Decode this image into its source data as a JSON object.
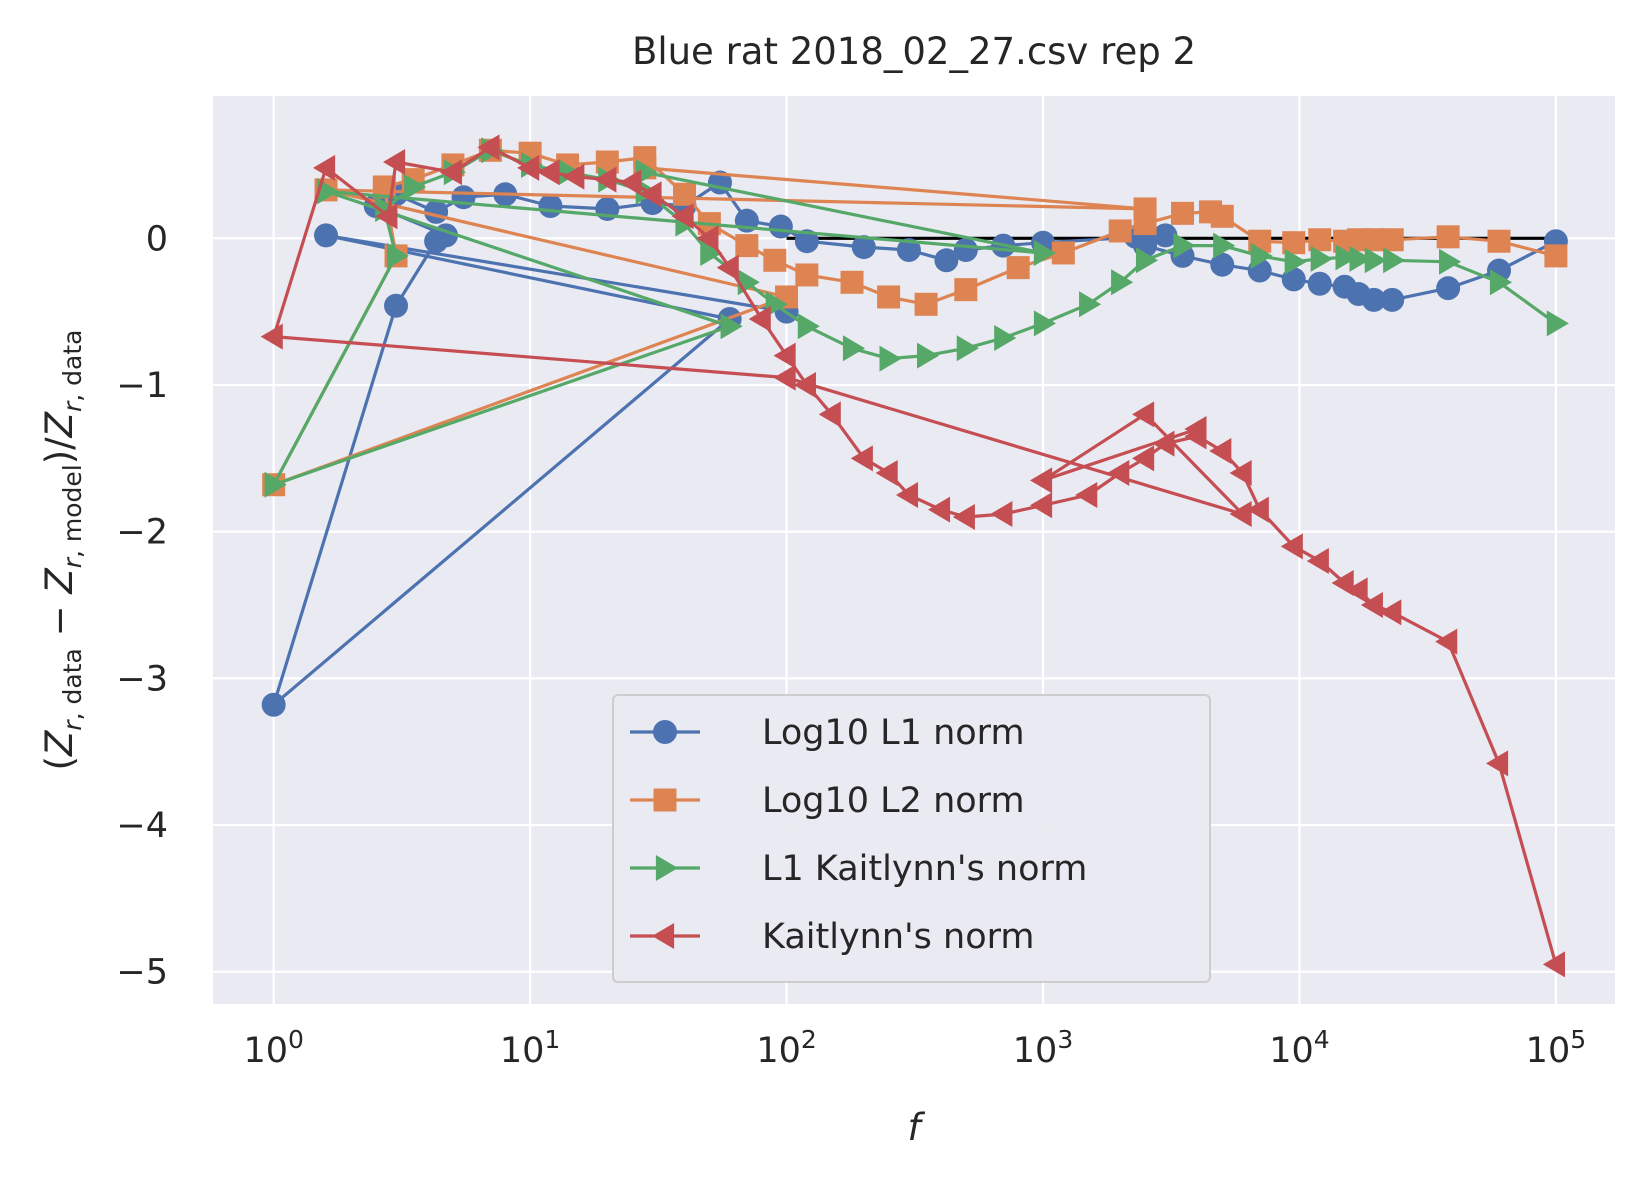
{
  "chart_data": {
    "type": "line",
    "title": "Blue rat 2018_02_27.csv rep 2",
    "xlabel": "f",
    "ylabel": "(Z_{r,data} − Z_{r,model})/Z_{r,data}",
    "xscale": "log",
    "xlim": [
      0.58,
      170000
    ],
    "ylim": [
      -5.22,
      0.97
    ],
    "xticks": [
      1,
      10,
      100,
      1000,
      10000,
      100000
    ],
    "xtick_labels": [
      "10^0",
      "10^1",
      "10^2",
      "10^3",
      "10^4",
      "10^5"
    ],
    "yticks": [
      0,
      -1,
      -2,
      -3,
      -4,
      -5
    ],
    "ytick_labels": [
      "0",
      "−1",
      "−2",
      "−3",
      "−4",
      "−5"
    ],
    "grid": true,
    "legend_position": "lower-center",
    "background": "#EAEAF2",
    "reference_line": {
      "x": [
        100,
        100000
      ],
      "y": [
        0,
        0
      ],
      "color": "#000000"
    },
    "series": [
      {
        "name": "Log10 L1 norm",
        "color": "#4C72B0",
        "marker": "circle",
        "points": [
          [
            100000,
            -0.02
          ],
          [
            60000,
            -0.22
          ],
          [
            38000,
            -0.34
          ],
          [
            23000,
            -0.42
          ],
          [
            19500,
            -0.42
          ],
          [
            17000,
            -0.38
          ],
          [
            15000,
            -0.33
          ],
          [
            12000,
            -0.31
          ],
          [
            9500,
            -0.28
          ],
          [
            7000,
            -0.22
          ],
          [
            5000,
            -0.18
          ],
          [
            3500,
            -0.12
          ],
          [
            2500,
            -0.05
          ],
          [
            2300,
            0.01
          ],
          [
            3000,
            0.02
          ],
          [
            1000,
            -0.03
          ],
          [
            700,
            -0.05
          ],
          [
            500,
            -0.08
          ],
          [
            420,
            -0.15
          ],
          [
            300,
            -0.08
          ],
          [
            200,
            -0.06
          ],
          [
            120,
            -0.02
          ],
          [
            95,
            0.08
          ],
          [
            70,
            0.12
          ],
          [
            55,
            0.38
          ],
          [
            40,
            0.22
          ],
          [
            30,
            0.24
          ],
          [
            20,
            0.2
          ],
          [
            12,
            0.22
          ],
          [
            8,
            0.3
          ],
          [
            5.5,
            0.28
          ],
          [
            4.3,
            0.18
          ],
          [
            3,
            0.3
          ],
          [
            2.5,
            0.22
          ],
          [
            4.7,
            0.02
          ],
          [
            4.3,
            -0.02
          ],
          [
            3,
            -0.46
          ],
          [
            1,
            -3.18
          ],
          [
            60,
            -0.55
          ],
          [
            1.6,
            0.02
          ],
          [
            100,
            -0.5
          ]
        ]
      },
      {
        "name": "Log10 L2 norm",
        "color": "#DD8452",
        "marker": "square",
        "points": [
          [
            100000,
            -0.12
          ],
          [
            60000,
            -0.02
          ],
          [
            38000,
            0.01
          ],
          [
            23000,
            -0.01
          ],
          [
            19500,
            -0.01
          ],
          [
            17000,
            -0.01
          ],
          [
            15000,
            -0.02
          ],
          [
            12000,
            -0.01
          ],
          [
            9500,
            -0.03
          ],
          [
            7000,
            -0.02
          ],
          [
            5000,
            0.15
          ],
          [
            4500,
            0.18
          ],
          [
            3500,
            0.17
          ],
          [
            2500,
            0.1
          ],
          [
            2000,
            0.05
          ],
          [
            1200,
            -0.1
          ],
          [
            800,
            -0.2
          ],
          [
            500,
            -0.35
          ],
          [
            350,
            -0.45
          ],
          [
            250,
            -0.4
          ],
          [
            180,
            -0.3
          ],
          [
            120,
            -0.25
          ],
          [
            90,
            -0.15
          ],
          [
            70,
            -0.05
          ],
          [
            50,
            0.1
          ],
          [
            40,
            0.3
          ],
          [
            28,
            0.55
          ],
          [
            20,
            0.52
          ],
          [
            14,
            0.5
          ],
          [
            10,
            0.58
          ],
          [
            7,
            0.6
          ],
          [
            5,
            0.5
          ],
          [
            3.5,
            0.4
          ],
          [
            2.7,
            0.35
          ],
          [
            3,
            -0.12
          ],
          [
            1,
            -1.68
          ],
          [
            100,
            -0.4
          ],
          [
            1.6,
            0.33
          ],
          [
            2500,
            0.2
          ],
          [
            28,
            0.48
          ]
        ]
      },
      {
        "name": "L1 Kaitlynn's norm",
        "color": "#55A868",
        "marker": "triangle-right",
        "points": [
          [
            100000,
            -0.58
          ],
          [
            60000,
            -0.3
          ],
          [
            38000,
            -0.16
          ],
          [
            23000,
            -0.15
          ],
          [
            19500,
            -0.15
          ],
          [
            17000,
            -0.14
          ],
          [
            15000,
            -0.13
          ],
          [
            12000,
            -0.14
          ],
          [
            9500,
            -0.16
          ],
          [
            7000,
            -0.12
          ],
          [
            5000,
            -0.05
          ],
          [
            3500,
            -0.05
          ],
          [
            2500,
            -0.15
          ],
          [
            2000,
            -0.3
          ],
          [
            1500,
            -0.45
          ],
          [
            1000,
            -0.58
          ],
          [
            700,
            -0.68
          ],
          [
            500,
            -0.75
          ],
          [
            350,
            -0.8
          ],
          [
            250,
            -0.82
          ],
          [
            180,
            -0.75
          ],
          [
            120,
            -0.6
          ],
          [
            90,
            -0.45
          ],
          [
            70,
            -0.3
          ],
          [
            50,
            -0.1
          ],
          [
            40,
            0.1
          ],
          [
            28,
            0.32
          ],
          [
            20,
            0.4
          ],
          [
            14,
            0.45
          ],
          [
            10,
            0.5
          ],
          [
            7,
            0.6
          ],
          [
            5,
            0.45
          ],
          [
            3.5,
            0.35
          ],
          [
            2.7,
            0.2
          ],
          [
            3,
            -0.12
          ],
          [
            1,
            -1.68
          ],
          [
            60,
            -0.6
          ],
          [
            1.6,
            0.32
          ],
          [
            1000,
            -0.1
          ],
          [
            28,
            0.45
          ]
        ]
      },
      {
        "name": "Kaitlynn's norm",
        "color": "#C44E52",
        "marker": "triangle-left",
        "points": [
          [
            100000,
            -4.95
          ],
          [
            60000,
            -3.58
          ],
          [
            38000,
            -2.75
          ],
          [
            23000,
            -2.55
          ],
          [
            19500,
            -2.5
          ],
          [
            17000,
            -2.4
          ],
          [
            15000,
            -2.35
          ],
          [
            12000,
            -2.2
          ],
          [
            9500,
            -2.1
          ],
          [
            7000,
            -1.85
          ],
          [
            6000,
            -1.6
          ],
          [
            5000,
            -1.45
          ],
          [
            4000,
            -1.35
          ],
          [
            3000,
            -1.4
          ],
          [
            2500,
            -1.5
          ],
          [
            2000,
            -1.6
          ],
          [
            1500,
            -1.75
          ],
          [
            1000,
            -1.82
          ],
          [
            700,
            -1.88
          ],
          [
            500,
            -1.9
          ],
          [
            400,
            -1.85
          ],
          [
            300,
            -1.75
          ],
          [
            250,
            -1.6
          ],
          [
            200,
            -1.5
          ],
          [
            150,
            -1.2
          ],
          [
            120,
            -1.0
          ],
          [
            100,
            -0.8
          ],
          [
            80,
            -0.55
          ],
          [
            60,
            -0.2
          ],
          [
            50,
            0.0
          ],
          [
            40,
            0.15
          ],
          [
            30,
            0.3
          ],
          [
            25,
            0.38
          ],
          [
            20,
            0.4
          ],
          [
            15,
            0.42
          ],
          [
            12,
            0.45
          ],
          [
            10,
            0.48
          ],
          [
            7,
            0.62
          ],
          [
            5,
            0.45
          ],
          [
            3,
            0.52
          ],
          [
            2.8,
            0.15
          ],
          [
            1.6,
            0.48
          ],
          [
            1,
            -0.67
          ],
          [
            100,
            -0.95
          ],
          [
            6000,
            -1.88
          ],
          [
            2500,
            -1.2
          ],
          [
            1000,
            -1.65
          ],
          [
            4000,
            -1.3
          ]
        ]
      }
    ]
  }
}
